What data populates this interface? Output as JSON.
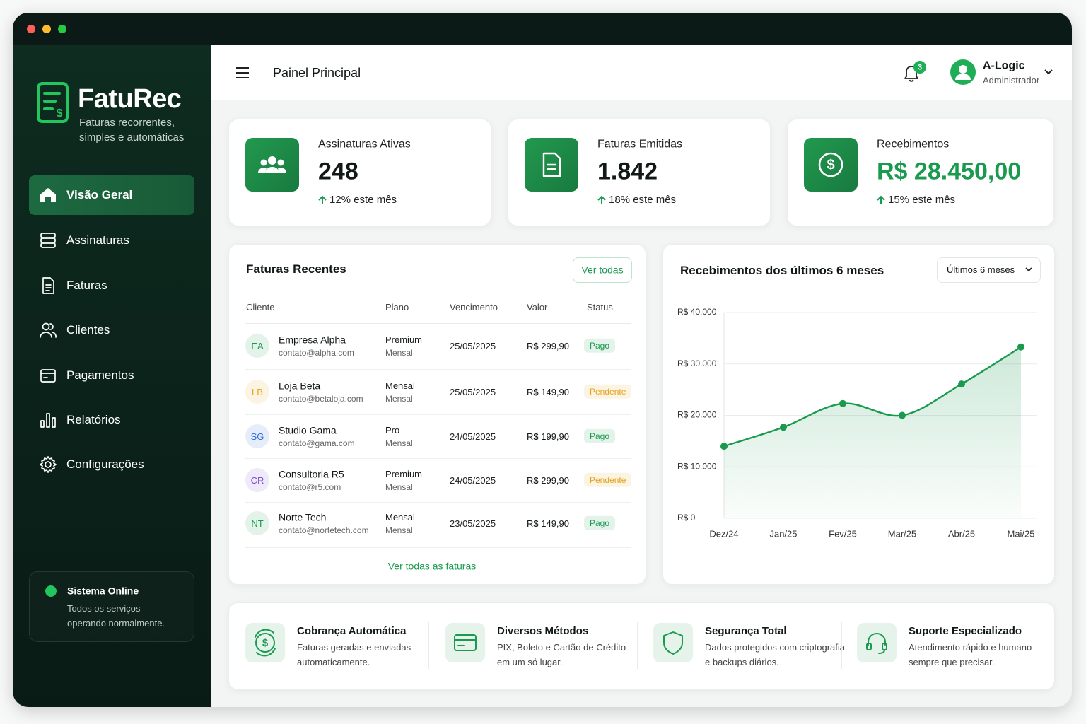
{
  "sidebar": {
    "brand": "FatuRec",
    "tagline": [
      "Faturas recorrentes,",
      "simples e automáticas"
    ],
    "nav": [
      "Visão Geral",
      "Assinaturas",
      "Faturas",
      "Clientes",
      "Pagamentos",
      "Relatórios",
      "Configurações"
    ],
    "status": {
      "title": "Sistema Online",
      "lines": [
        "Todos os serviços",
        "operando normalmente."
      ]
    }
  },
  "header": {
    "title": "Painel Principal",
    "notifications": 3,
    "user": {
      "name": "A-Logic",
      "role": "Administrador"
    }
  },
  "stats": [
    {
      "label": "Assinaturas Ativas",
      "value": "248",
      "change": "12% este mês",
      "value_color": "#111815"
    },
    {
      "label": "Faturas Emitidas",
      "value": "1.842",
      "change": "18% este mês",
      "value_color": "#111815"
    },
    {
      "label": "Recebimentos",
      "value": "R$ 28.450,00",
      "change": "15% este mês",
      "value_color": "#1a9a4f"
    }
  ],
  "invoices": {
    "title": "Faturas Recentes",
    "action": "Ver todas",
    "columns": [
      "Cliente",
      "Plano",
      "Vencimento",
      "Valor",
      "Status"
    ],
    "rows": [
      {
        "initials": "EA",
        "avatar_color": "#1a9a4f",
        "client": "Empresa Alpha",
        "email": "contato@alpha.com",
        "plan": "Premium",
        "cycle": "Mensal",
        "due": "25/05/2025",
        "amount": "R$ 299,90",
        "status": "Pago",
        "status_color": "#1a9a4f"
      },
      {
        "initials": "LB",
        "avatar_color": "#e5a21b",
        "client": "Loja Beta",
        "email": "contato@betaloja.com",
        "plan": "Mensal",
        "cycle": "Mensal",
        "due": "25/05/2025",
        "amount": "R$ 149,90",
        "status": "Pendente",
        "status_color": "#e5a21b"
      },
      {
        "initials": "SG",
        "avatar_color": "#2f6fd6",
        "client": "Studio Gama",
        "email": "contato@gama.com",
        "plan": "Pro",
        "cycle": "Mensal",
        "due": "24/05/2025",
        "amount": "R$ 199,90",
        "status": "Pago",
        "status_color": "#1a9a4f"
      },
      {
        "initials": "CR",
        "avatar_color": "#7b4fd6",
        "client": "Consultoria R5",
        "email": "contato@r5.com",
        "plan": "Premium",
        "cycle": "Mensal",
        "due": "24/05/2025",
        "amount": "R$ 299,90",
        "status": "Pendente",
        "status_color": "#e5a21b"
      },
      {
        "initials": "NT",
        "avatar_color": "#1a9a4f",
        "client": "Norte Tech",
        "email": "contato@nortetech.com",
        "plan": "Mensal",
        "cycle": "Mensal",
        "due": "23/05/2025",
        "amount": "R$ 149,90",
        "status": "Pago",
        "status_color": "#1a9a4f"
      }
    ],
    "footer": "Ver todas as faturas"
  },
  "chart_data": {
    "type": "line",
    "title": "Recebimentos dos últimos 6 meses",
    "period": "Últimos 6 meses",
    "categories": [
      "Dez/24",
      "Jan/25",
      "Fev/25",
      "Mar/25",
      "Abr/25",
      "Mai/25"
    ],
    "values": [
      14000,
      17700,
      22300,
      20000,
      26100,
      33300
    ],
    "color": "#1a9a4f",
    "ylim": [
      0,
      40000
    ],
    "yticks": [
      {
        "value": 0,
        "label": "R$ 0"
      },
      {
        "value": 10000,
        "label": "R$ 10.000"
      },
      {
        "value": 20000,
        "label": "R$ 20.000"
      },
      {
        "value": 30000,
        "label": "R$ 30.000"
      },
      {
        "value": 40000,
        "label": "R$ 40.000"
      }
    ],
    "grid": true
  },
  "features": [
    {
      "title": "Cobrança Automática",
      "lines": [
        "Faturas geradas e enviadas",
        "automaticamente."
      ]
    },
    {
      "title": "Diversos Métodos",
      "lines": [
        "PIX, Boleto e Cartão de Crédito",
        "em um só lugar."
      ]
    },
    {
      "title": "Segurança Total",
      "lines": [
        "Dados protegidos com criptografia",
        "e backups diários."
      ]
    },
    {
      "title": "Suporte Especializado",
      "lines": [
        "Atendimento rápido e humano",
        "sempre que precisar."
      ]
    }
  ]
}
